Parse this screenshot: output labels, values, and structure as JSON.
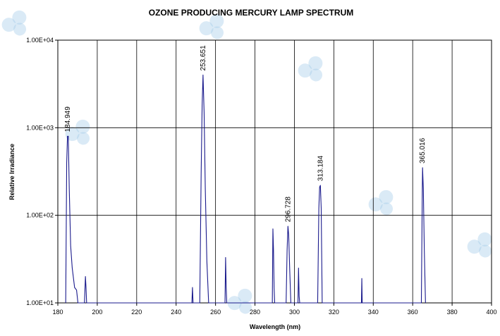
{
  "chart_data": {
    "type": "line",
    "title": "OZONE PRODUCING MERCURY LAMP SPECTRUM",
    "xlabel": "Wavelength (nm)",
    "ylabel": "Relative Irradiance",
    "xlim": [
      180,
      400
    ],
    "ylim": [
      10,
      10000
    ],
    "y_scale": "log",
    "grid": true,
    "x_ticks": [
      180,
      200,
      220,
      240,
      260,
      280,
      300,
      320,
      340,
      360,
      380,
      400
    ],
    "x_tick_labels": [
      "180",
      "200",
      "220",
      "240",
      "260",
      "280",
      "300",
      "320",
      "340",
      "360",
      "380",
      "400"
    ],
    "y_ticks": [
      10,
      100,
      1000,
      10000
    ],
    "y_tick_labels": [
      "1.00E+01",
      "1.00E+02",
      "1.00E+03",
      "1.00E+04"
    ],
    "series_color": "#1a1a8c",
    "series": [
      {
        "x": [
          184.0,
          184.5,
          184.9,
          185.3,
          185.8,
          186.5,
          187.3,
          188.5,
          189.5,
          190.2,
          193.5,
          194.0,
          194.3,
          194.6,
          194.9,
          248.0,
          248.3,
          248.6,
          252.0,
          252.7,
          253.2,
          253.651,
          254.2,
          254.8,
          255.6,
          256.5,
          264.8,
          265.1,
          265.4,
          265.7,
          288.8,
          289.1,
          289.4,
          289.7,
          290.0,
          295.8,
          296.3,
          296.728,
          297.1,
          297.6,
          298.2,
          301.8,
          302.1,
          302.4,
          302.7,
          311.8,
          312.4,
          312.8,
          313.184,
          313.6,
          314.1,
          334.0,
          334.2,
          334.4,
          364.4,
          364.9,
          365.016,
          365.4,
          365.9,
          366.5
        ],
        "y": [
          10,
          400,
          800,
          800,
          200,
          45,
          25,
          15,
          14,
          10,
          10,
          20,
          15,
          10,
          10,
          10,
          15,
          10,
          10,
          300,
          1800,
          4000,
          1500,
          200,
          30,
          10,
          10,
          33,
          15,
          10,
          10,
          70,
          40,
          15,
          10,
          10,
          40,
          75,
          60,
          25,
          10,
          10,
          25,
          12,
          10,
          10,
          120,
          210,
          220,
          120,
          10,
          10,
          19,
          10,
          10,
          220,
          350,
          200,
          40,
          10
        ]
      }
    ],
    "annotations": [
      {
        "x": 184.949,
        "y": 800,
        "text": "184.949"
      },
      {
        "x": 253.651,
        "y": 4000,
        "text": "253.651"
      },
      {
        "x": 296.728,
        "y": 75,
        "text": "296.728"
      },
      {
        "x": 313.184,
        "y": 220,
        "text": "313.184"
      },
      {
        "x": 365.016,
        "y": 350,
        "text": "365.016"
      }
    ]
  }
}
